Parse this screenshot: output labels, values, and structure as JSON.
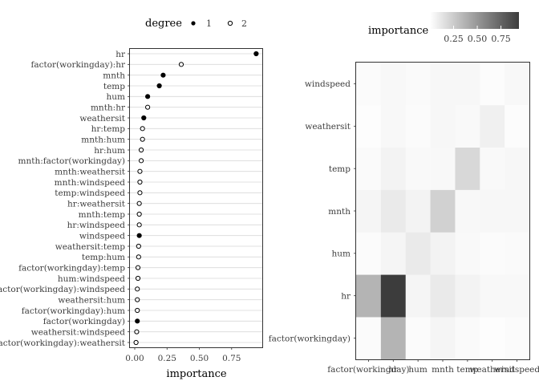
{
  "chart_data": [
    {
      "type": "scatter",
      "xlabel": "importance",
      "ylabel": "",
      "xlim": [
        0,
        0.95
      ],
      "xticks": [
        0.0,
        0.25,
        0.5,
        0.75
      ],
      "xtick_labels": [
        "0.00",
        "0.25",
        "0.50",
        "0.75"
      ],
      "grid": true,
      "legend": {
        "title": "degree",
        "position": "top",
        "labels": [
          "1",
          "2"
        ],
        "markers": [
          "filled-circle",
          "open-circle"
        ]
      },
      "points": [
        {
          "label": "hr",
          "value": 0.94,
          "degree": "1"
        },
        {
          "label": "factor(workingday):hr",
          "value": 0.36,
          "degree": "2"
        },
        {
          "label": "mnth",
          "value": 0.22,
          "degree": "1"
        },
        {
          "label": "temp",
          "value": 0.19,
          "degree": "1"
        },
        {
          "label": "hum",
          "value": 0.1,
          "degree": "1"
        },
        {
          "label": "mnth:hr",
          "value": 0.1,
          "degree": "2"
        },
        {
          "label": "weathersit",
          "value": 0.07,
          "degree": "1"
        },
        {
          "label": "hr:temp",
          "value": 0.06,
          "degree": "2"
        },
        {
          "label": "mnth:hum",
          "value": 0.06,
          "degree": "2"
        },
        {
          "label": "hr:hum",
          "value": 0.05,
          "degree": "2"
        },
        {
          "label": "mnth:factor(workingday)",
          "value": 0.05,
          "degree": "2"
        },
        {
          "label": "mnth:weathersit",
          "value": 0.04,
          "degree": "2"
        },
        {
          "label": "mnth:windspeed",
          "value": 0.04,
          "degree": "2"
        },
        {
          "label": "temp:windspeed",
          "value": 0.04,
          "degree": "2"
        },
        {
          "label": "hr:weathersit",
          "value": 0.035,
          "degree": "2"
        },
        {
          "label": "mnth:temp",
          "value": 0.035,
          "degree": "2"
        },
        {
          "label": "hr:windspeed",
          "value": 0.035,
          "degree": "2"
        },
        {
          "label": "windspeed",
          "value": 0.035,
          "degree": "1"
        },
        {
          "label": "weathersit:temp",
          "value": 0.03,
          "degree": "2"
        },
        {
          "label": "temp:hum",
          "value": 0.03,
          "degree": "2"
        },
        {
          "label": "factor(workingday):temp",
          "value": 0.025,
          "degree": "2"
        },
        {
          "label": "hum:windspeed",
          "value": 0.025,
          "degree": "2"
        },
        {
          "label": "factor(workingday):windspeed",
          "value": 0.02,
          "degree": "2"
        },
        {
          "label": "weathersit:hum",
          "value": 0.02,
          "degree": "2"
        },
        {
          "label": "factor(workingday):hum",
          "value": 0.02,
          "degree": "2"
        },
        {
          "label": "factor(workingday)",
          "value": 0.02,
          "degree": "1"
        },
        {
          "label": "weathersit:windspeed",
          "value": 0.015,
          "degree": "2"
        },
        {
          "label": "factor(workingday):weathersit",
          "value": 0.01,
          "degree": "2"
        }
      ]
    },
    {
      "type": "heatmap",
      "x_categories": [
        "factor(workingday)",
        "hr",
        "hum",
        "mnth",
        "temp",
        "weathersit",
        "windspeed"
      ],
      "y_categories": [
        "factor(workingday)",
        "hr",
        "hum",
        "mnth",
        "temp",
        "weathersit",
        "windspeed"
      ],
      "legend": {
        "title": "importance",
        "position": "top",
        "ticks": [
          0.25,
          0.5,
          0.75
        ],
        "tick_labels": [
          "0.25",
          "0.50",
          "0.75"
        ],
        "range": [
          0,
          0.94
        ],
        "colors": [
          "#ffffff",
          "#3c3c3c"
        ]
      },
      "rows": [
        {
          "y": "factor(workingday)",
          "values": [
            0.02,
            0.36,
            0.02,
            0.05,
            0.025,
            0.01,
            0.02
          ]
        },
        {
          "y": "hr",
          "values": [
            0.36,
            0.94,
            0.05,
            0.1,
            0.06,
            0.035,
            0.035
          ]
        },
        {
          "y": "hum",
          "values": [
            0.02,
            0.05,
            0.1,
            0.06,
            0.03,
            0.02,
            0.025
          ]
        },
        {
          "y": "mnth",
          "values": [
            0.05,
            0.1,
            0.06,
            0.22,
            0.035,
            0.04,
            0.04
          ]
        },
        {
          "y": "temp",
          "values": [
            0.025,
            0.06,
            0.03,
            0.035,
            0.19,
            0.03,
            0.04
          ]
        },
        {
          "y": "weathersit",
          "values": [
            0.01,
            0.035,
            0.02,
            0.04,
            0.03,
            0.07,
            0.015
          ]
        },
        {
          "y": "windspeed",
          "values": [
            0.02,
            0.035,
            0.025,
            0.04,
            0.04,
            0.015,
            0.035
          ]
        }
      ]
    }
  ]
}
